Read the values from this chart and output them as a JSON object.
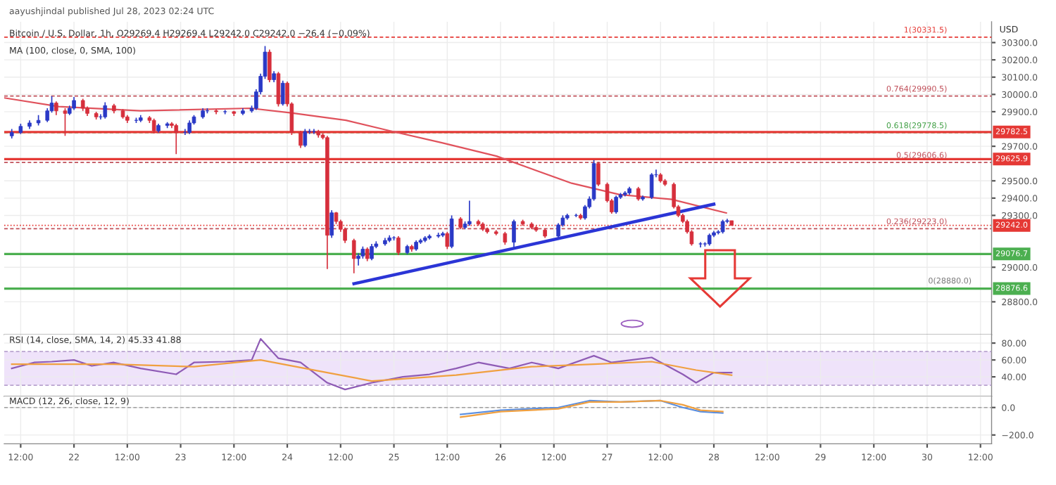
{
  "chart_data": [
    {
      "type": "candlestick",
      "title": "Bitcoin / U.S. Dollar, 1h, O29269.4 H29269.4 L29242.0 C29242.0 −26.4 (−0.09%)",
      "subtitle": "MA (100, close, 0, SMA, 100)",
      "ylabel": "USD",
      "annotations": [
        "aayushjindal published Jul 28, 2023 02:24 UTC",
        {
          "text": "0(28880.0)",
          "x": "2023-07-30T10:00",
          "y": 28880.0
        }
      ],
      "x": [
        "2023-07-21T10:00",
        "2023-07-21T12:00",
        "2023-07-21T14:00",
        "2023-07-21T16:00",
        "2023-07-21T18:00",
        "2023-07-21T19:00",
        "2023-07-21T20:00",
        "2023-07-21T22:00",
        "2023-07-21T23:00",
        "2023-07-22T00:00",
        "2023-07-22T02:00",
        "2023-07-22T03:00",
        "2023-07-22T05:00",
        "2023-07-22T06:00",
        "2023-07-22T07:00",
        "2023-07-22T09:00",
        "2023-07-22T11:00",
        "2023-07-22T12:00",
        "2023-07-22T14:00",
        "2023-07-22T15:00",
        "2023-07-22T17:00",
        "2023-07-22T18:00",
        "2023-07-22T19:00",
        "2023-07-22T21:00",
        "2023-07-22T22:00",
        "2023-07-22T23:00",
        "2023-07-23T01:00",
        "2023-07-23T02:00",
        "2023-07-23T03:00",
        "2023-07-23T05:00",
        "2023-07-23T06:00",
        "2023-07-23T08:00",
        "2023-07-23T10:00",
        "2023-07-23T12:00",
        "2023-07-23T14:00",
        "2023-07-23T16:00",
        "2023-07-23T17:00",
        "2023-07-23T18:00",
        "2023-07-23T19:00",
        "2023-07-23T20:00",
        "2023-07-23T21:00",
        "2023-07-23T22:00",
        "2023-07-23T23:00",
        "2023-07-24T00:00",
        "2023-07-24T01:00",
        "2023-07-24T03:00",
        "2023-07-24T04:00",
        "2023-07-24T05:00",
        "2023-07-24T06:00",
        "2023-07-24T07:00",
        "2023-07-24T08:00",
        "2023-07-24T09:00",
        "2023-07-24T10:00",
        "2023-07-24T11:00",
        "2023-07-24T12:00",
        "2023-07-24T13:00",
        "2023-07-24T15:00",
        "2023-07-24T16:00",
        "2023-07-24T17:00",
        "2023-07-24T18:00",
        "2023-07-24T19:00",
        "2023-07-24T20:00",
        "2023-07-24T22:00",
        "2023-07-24T23:00",
        "2023-07-25T00:00",
        "2023-07-25T01:00",
        "2023-07-25T03:00",
        "2023-07-25T04:00",
        "2023-07-25T05:00",
        "2023-07-25T06:00",
        "2023-07-25T07:00",
        "2023-07-25T08:00",
        "2023-07-25T10:00",
        "2023-07-25T11:00",
        "2023-07-25T12:00",
        "2023-07-25T13:00",
        "2023-07-25T15:00",
        "2023-07-25T16:00",
        "2023-07-25T17:00",
        "2023-07-25T19:00",
        "2023-07-25T20:00",
        "2023-07-25T21:00",
        "2023-07-25T23:00",
        "2023-07-26T01:00",
        "2023-07-26T03:00",
        "2023-07-26T05:00",
        "2023-07-26T07:00",
        "2023-07-26T08:00",
        "2023-07-26T10:00",
        "2023-07-26T13:00",
        "2023-07-26T14:00",
        "2023-07-26T15:00",
        "2023-07-26T17:00",
        "2023-07-26T18:00",
        "2023-07-26T19:00",
        "2023-07-26T20:00",
        "2023-07-26T21:00",
        "2023-07-26T22:00",
        "2023-07-27T00:00",
        "2023-07-27T01:00",
        "2023-07-27T02:00",
        "2023-07-27T03:00",
        "2023-07-27T04:00",
        "2023-07-27T05:00",
        "2023-07-27T07:00",
        "2023-07-27T08:00",
        "2023-07-27T10:00",
        "2023-07-27T11:00",
        "2023-07-27T12:00",
        "2023-07-27T13:00",
        "2023-07-27T15:00",
        "2023-07-27T16:00",
        "2023-07-27T17:00",
        "2023-07-27T18:00",
        "2023-07-27T19:00",
        "2023-07-27T21:00",
        "2023-07-27T22:00",
        "2023-07-27T23:00",
        "2023-07-28T00:00",
        "2023-07-28T01:00",
        "2023-07-28T02:00",
        "2023-07-28T03:00",
        "2023-07-28T04:00"
      ],
      "ohlc": [
        [
          29760,
          29800,
          29745,
          29780
        ],
        [
          29780,
          29830,
          29770,
          29815
        ],
        [
          29815,
          29850,
          29800,
          29835
        ],
        [
          29835,
          29880,
          29820,
          29850
        ],
        [
          29850,
          29920,
          29840,
          29905
        ],
        [
          29905,
          29990,
          29895,
          29950
        ],
        [
          29950,
          29960,
          29880,
          29905
        ],
        [
          29905,
          29920,
          29760,
          29890
        ],
        [
          29890,
          29935,
          29880,
          29920
        ],
        [
          29920,
          29985,
          29910,
          29965
        ],
        [
          29965,
          29975,
          29905,
          29920
        ],
        [
          29920,
          29930,
          29875,
          29890
        ],
        [
          29890,
          29900,
          29855,
          29870
        ],
        [
          29870,
          29885,
          29855,
          29870
        ],
        [
          29870,
          29955,
          29860,
          29935
        ],
        [
          29935,
          29945,
          29890,
          29905
        ],
        [
          29905,
          29915,
          29860,
          29870
        ],
        [
          29870,
          29880,
          29835,
          29850
        ],
        [
          29850,
          29865,
          29835,
          29850
        ],
        [
          29850,
          29880,
          29840,
          29865
        ],
        [
          29865,
          29875,
          29835,
          29850
        ],
        [
          29850,
          29860,
          29775,
          29790
        ],
        [
          29790,
          29830,
          29780,
          29820
        ],
        [
          29820,
          29840,
          29805,
          29830
        ],
        [
          29830,
          29840,
          29805,
          29820
        ],
        [
          29820,
          29830,
          29655,
          29780
        ],
        [
          29780,
          29800,
          29765,
          29780
        ],
        [
          29780,
          29850,
          29770,
          29835
        ],
        [
          29835,
          29880,
          29825,
          29870
        ],
        [
          29870,
          29920,
          29860,
          29905
        ],
        [
          29905,
          29920,
          29890,
          29905
        ],
        [
          29905,
          29915,
          29885,
          29900
        ],
        [
          29900,
          29910,
          29885,
          29900
        ],
        [
          29900,
          29905,
          29875,
          29890
        ],
        [
          29890,
          29920,
          29880,
          29905
        ],
        [
          29905,
          29935,
          29895,
          29920
        ],
        [
          29920,
          30030,
          29910,
          30015
        ],
        [
          30015,
          30120,
          30000,
          30105
        ],
        [
          30105,
          30280,
          30090,
          30245
        ],
        [
          30245,
          30260,
          30070,
          30085
        ],
        [
          30085,
          30135,
          30070,
          30120
        ],
        [
          30120,
          30130,
          29930,
          29945
        ],
        [
          29945,
          30080,
          29935,
          30065
        ],
        [
          30065,
          30075,
          29930,
          29945
        ],
        [
          29945,
          29955,
          29765,
          29780
        ],
        [
          29780,
          29790,
          29690,
          29705
        ],
        [
          29705,
          29800,
          29695,
          29785
        ],
        [
          29785,
          29800,
          29770,
          29785
        ],
        [
          29785,
          29800,
          29770,
          29785
        ],
        [
          29785,
          29795,
          29750,
          29765
        ],
        [
          29765,
          29775,
          29740,
          29750
        ],
        [
          29750,
          29760,
          28990,
          29185
        ],
        [
          29185,
          29330,
          29170,
          29315
        ],
        [
          29315,
          29320,
          29250,
          29265
        ],
        [
          29265,
          29275,
          29205,
          29220
        ],
        [
          29220,
          29230,
          29140,
          29155
        ],
        [
          29155,
          29165,
          28965,
          29050
        ],
        [
          29050,
          29080,
          29010,
          29065
        ],
        [
          29065,
          29120,
          29050,
          29105
        ],
        [
          29105,
          29115,
          29035,
          29050
        ],
        [
          29050,
          29135,
          29040,
          29120
        ],
        [
          29120,
          29150,
          29110,
          29135
        ],
        [
          29135,
          29170,
          29125,
          29155
        ],
        [
          29155,
          29185,
          29145,
          29170
        ],
        [
          29170,
          29180,
          29155,
          29170
        ],
        [
          29170,
          29180,
          29070,
          29085
        ],
        [
          29085,
          29130,
          29075,
          29120
        ],
        [
          29120,
          29130,
          29090,
          29105
        ],
        [
          29105,
          29155,
          29095,
          29145
        ],
        [
          29145,
          29165,
          29135,
          29155
        ],
        [
          29155,
          29180,
          29145,
          29170
        ],
        [
          29170,
          29190,
          29160,
          29180
        ],
        [
          29180,
          29200,
          29170,
          29185
        ],
        [
          29185,
          29205,
          29175,
          29195
        ],
        [
          29195,
          29205,
          29105,
          29120
        ],
        [
          29120,
          29300,
          29110,
          29280
        ],
        [
          29280,
          29290,
          29220,
          29230
        ],
        [
          29230,
          29265,
          29220,
          29250
        ],
        [
          29250,
          29385,
          29240,
          29265
        ],
        [
          29265,
          29275,
          29240,
          29250
        ],
        [
          29250,
          29260,
          29210,
          29220
        ],
        [
          29220,
          29230,
          29195,
          29205
        ],
        [
          29205,
          29215,
          29185,
          29195
        ],
        [
          29195,
          29205,
          29130,
          29145
        ],
        [
          29145,
          29275,
          29110,
          29265
        ],
        [
          29265,
          29275,
          29240,
          29250
        ],
        [
          29250,
          29260,
          29220,
          29230
        ],
        [
          29230,
          29240,
          29205,
          29215
        ],
        [
          29215,
          29225,
          29170,
          29180
        ],
        [
          29180,
          29255,
          29170,
          29245
        ],
        [
          29245,
          29300,
          29235,
          29285
        ],
        [
          29285,
          29310,
          29275,
          29300
        ],
        [
          29300,
          29310,
          29290,
          29300
        ],
        [
          29300,
          29310,
          29275,
          29285
        ],
        [
          29285,
          29360,
          29275,
          29350
        ],
        [
          29350,
          29410,
          29340,
          29395
        ],
        [
          29395,
          29620,
          29385,
          29600
        ],
        [
          29600,
          29610,
          29470,
          29480
        ],
        [
          29480,
          29490,
          29375,
          29385
        ],
        [
          29385,
          29395,
          29310,
          29320
        ],
        [
          29320,
          29415,
          29310,
          29405
        ],
        [
          29405,
          29430,
          29395,
          29420
        ],
        [
          29420,
          29440,
          29410,
          29430
        ],
        [
          29430,
          29465,
          29420,
          29455
        ],
        [
          29455,
          29465,
          29385,
          29395
        ],
        [
          29395,
          29415,
          29385,
          29405
        ],
        [
          29405,
          29545,
          29395,
          29535
        ],
        [
          29535,
          29565,
          29520,
          29535
        ],
        [
          29535,
          29545,
          29490,
          29500
        ],
        [
          29500,
          29510,
          29470,
          29480
        ],
        [
          29480,
          29490,
          29340,
          29350
        ],
        [
          29350,
          29360,
          29290,
          29300
        ],
        [
          29300,
          29310,
          29255,
          29265
        ],
        [
          29265,
          29275,
          29195,
          29205
        ],
        [
          29205,
          29215,
          29125,
          29135
        ],
        [
          29135,
          29145,
          29115,
          29135
        ],
        [
          29135,
          29145,
          29120,
          29135
        ],
        [
          29135,
          29195,
          29125,
          29185
        ],
        [
          29185,
          29210,
          29175,
          29200
        ],
        [
          29200,
          29215,
          29190,
          29205
        ],
        [
          29205,
          29275,
          29195,
          29265
        ],
        [
          29265,
          29280,
          29255,
          29269.4
        ],
        [
          29269.4,
          29269.4,
          29242.0,
          29242.0
        ]
      ],
      "series": [
        {
          "type": "line",
          "color": "#e0525c",
          "x": [
            "2023-07-21T08:18",
            "2023-07-21T20:36",
            "2023-07-22T15:00",
            "2023-07-23T15:42",
            "2023-07-24T00:54",
            "2023-07-24T13:12",
            "2023-07-24T22:30",
            "2023-07-25T10:48",
            "2023-07-25T23:06",
            "2023-07-26T08:18",
            "2023-07-26T16:00",
            "2023-07-27T02:48",
            "2023-07-27T14:30",
            "2023-07-28T02:48"
          ],
          "values": [
            29980,
            29930,
            29905,
            29920,
            29893,
            29850,
            29793,
            29720,
            29643,
            29557,
            29486,
            29420,
            29393,
            29314
          ]
        },
        {
          "type": "line",
          "color": "#2b35d6",
          "x": [
            "2023-07-24T15:00",
            "2023-07-28T00:00"
          ],
          "values": [
            28905,
            29365
          ]
        }
      ],
      "ref_lines": [
        {
          "axis": "y",
          "value": 30331.5,
          "label": "1(30331.5)",
          "color": "#e53935",
          "line_style": "dashed"
        },
        {
          "axis": "y",
          "value": 29990.5,
          "label": "0.764(29990.5)",
          "color": "#c0505a",
          "line_style": "dashed"
        },
        {
          "axis": "y",
          "value": 29778.5,
          "label": "0.618(29778.5)",
          "color": "#43a047",
          "line_style": "dashed"
        },
        {
          "axis": "y",
          "value": 29782.5,
          "label": "29782.5",
          "color": "#e53935",
          "line_style": "solid"
        },
        {
          "axis": "y",
          "value": 29625.9,
          "label": "29625.9",
          "color": "#e53935",
          "line_style": "solid"
        },
        {
          "axis": "y",
          "value": 29606.6,
          "label": "0.5(29606.6)",
          "color": "#c0505a",
          "line_style": "dashed"
        },
        {
          "axis": "y",
          "value": 29242.0,
          "label": "29242.0",
          "color": "#e53935",
          "line_style": "dotted"
        },
        {
          "axis": "y",
          "value": 29223.0,
          "label": "0.236(29223.0)",
          "color": "#c0505a",
          "line_style": "dashed"
        },
        {
          "axis": "y",
          "value": 29076.7,
          "label": "29076.7",
          "color": "#4caf50",
          "line_style": "solid"
        },
        {
          "axis": "y",
          "value": 28876.6,
          "label": "28876.6",
          "color": "#4caf50",
          "line_style": "solid"
        }
      ],
      "xlim": [
        "2023-07-21T08:18",
        "2023-07-30T14:30"
      ],
      "xticks": [
        {
          "value": "2023-07-21T12:00",
          "label": null
        },
        {
          "value": "2023-07-22T00:00",
          "label": null
        },
        {
          "value": "2023-07-22T12:00",
          "label": null
        },
        {
          "value": "2023-07-23T00:00",
          "label": null
        },
        {
          "value": "2023-07-23T12:00",
          "label": null
        },
        {
          "value": "2023-07-24T00:00",
          "label": null
        },
        {
          "value": "2023-07-24T12:00",
          "label": null
        },
        {
          "value": "2023-07-25T00:00",
          "label": null
        },
        {
          "value": "2023-07-25T12:00",
          "label": null
        },
        {
          "value": "2023-07-26T00:00",
          "label": null
        },
        {
          "value": "2023-07-26T12:00",
          "label": null
        },
        {
          "value": "2023-07-27T00:00",
          "label": null
        },
        {
          "value": "2023-07-27T12:00",
          "label": null
        },
        {
          "value": "2023-07-28T00:00",
          "label": null
        },
        {
          "value": "2023-07-28T12:00",
          "label": null
        },
        {
          "value": "2023-07-29T00:00",
          "label": null
        },
        {
          "value": "2023-07-29T12:00",
          "label": null
        },
        {
          "value": "2023-07-30T00:00",
          "label": null
        },
        {
          "value": "2023-07-30T12:00",
          "label": null
        }
      ],
      "ylim": [
        28610,
        30420
      ],
      "yticks": [
        {
          "value": 28800,
          "label": "28800.0"
        },
        {
          "value": 29000,
          "label": "29000.0"
        },
        {
          "value": 29300,
          "label": "29300.0"
        },
        {
          "value": 29400,
          "label": "29400.0"
        },
        {
          "value": 29500,
          "label": "29500.0"
        },
        {
          "value": 29700,
          "label": "29700.0"
        },
        {
          "value": 29900,
          "label": "29900.0"
        },
        {
          "value": 30000,
          "label": "30000.0"
        },
        {
          "value": 30100,
          "label": "30100.0"
        },
        {
          "value": 30200,
          "label": "30200.0"
        },
        {
          "value": 30300,
          "label": "30300.0"
        }
      ],
      "grid": true,
      "tick_labels": "y"
    },
    {
      "type": "line",
      "title": "RSI (14, close, SMA, 14, 2) 45.33 41.88",
      "series": [
        {
          "color": "#8e5bb5",
          "x": [
            "2023-07-21T10:00",
            "2023-07-21T15:00",
            "2023-07-21T19:00",
            "2023-07-22T00:00",
            "2023-07-22T04:00",
            "2023-07-22T09:00",
            "2023-07-22T15:00",
            "2023-07-22T23:00",
            "2023-07-23T03:00",
            "2023-07-23T10:00",
            "2023-07-23T16:00",
            "2023-07-23T18:00",
            "2023-07-23T22:00",
            "2023-07-24T03:00",
            "2023-07-24T09:00",
            "2023-07-24T13:00",
            "2023-07-24T19:00",
            "2023-07-25T02:00",
            "2023-07-25T08:00",
            "2023-07-25T14:00",
            "2023-07-25T19:00",
            "2023-07-26T02:00",
            "2023-07-26T07:00",
            "2023-07-26T13:00",
            "2023-07-26T21:00",
            "2023-07-27T01:00",
            "2023-07-27T10:00",
            "2023-07-27T17:00",
            "2023-07-27T20:00",
            "2023-07-28T00:00",
            "2023-07-28T04:00"
          ],
          "values": [
            50,
            57,
            58,
            60,
            53,
            57,
            50,
            43,
            57,
            58,
            60,
            85,
            62,
            57,
            33,
            25,
            33,
            40,
            43,
            50,
            57,
            50,
            57,
            50,
            65,
            57,
            63,
            43,
            33,
            45,
            45
          ]
        },
        {
          "color": "#f0a040",
          "x": [
            "2023-07-21T10:00",
            "2023-07-22T09:00",
            "2023-07-23T03:00",
            "2023-07-23T18:00",
            "2023-07-24T09:00",
            "2023-07-24T19:00",
            "2023-07-25T14:00",
            "2023-07-26T07:00",
            "2023-07-26T21:00",
            "2023-07-27T10:00",
            "2023-07-27T20:00",
            "2023-07-28T04:00"
          ],
          "values": [
            55,
            55,
            52,
            60,
            45,
            35,
            42,
            52,
            55,
            58,
            48,
            42
          ]
        }
      ],
      "bands": [
        {
          "axis": "y",
          "from": 30,
          "to": 70,
          "color": "#efe3fa"
        }
      ],
      "ref_lines": [
        {
          "axis": "y",
          "value": 70,
          "color": "#b9a3cf",
          "line_style": "dashed"
        },
        {
          "axis": "y",
          "value": 30,
          "color": "#b9a3cf",
          "line_style": "dashed"
        }
      ],
      "xlim": [
        "2023-07-21T08:18",
        "2023-07-30T14:30"
      ],
      "xticks": [
        {
          "value": "2023-07-21T12:00",
          "label": null
        },
        {
          "value": "2023-07-22T00:00",
          "label": null
        },
        {
          "value": "2023-07-22T12:00",
          "label": null
        },
        {
          "value": "2023-07-23T00:00",
          "label": null
        },
        {
          "value": "2023-07-23T12:00",
          "label": null
        },
        {
          "value": "2023-07-24T00:00",
          "label": null
        },
        {
          "value": "2023-07-24T12:00",
          "label": null
        },
        {
          "value": "2023-07-25T00:00",
          "label": null
        },
        {
          "value": "2023-07-25T12:00",
          "label": null
        },
        {
          "value": "2023-07-26T00:00",
          "label": null
        },
        {
          "value": "2023-07-26T12:00",
          "label": null
        },
        {
          "value": "2023-07-27T00:00",
          "label": null
        },
        {
          "value": "2023-07-27T12:00",
          "label": null
        },
        {
          "value": "2023-07-28T00:00",
          "label": null
        },
        {
          "value": "2023-07-28T12:00",
          "label": null
        },
        {
          "value": "2023-07-29T00:00",
          "label": null
        },
        {
          "value": "2023-07-29T12:00",
          "label": null
        },
        {
          "value": "2023-07-30T00:00",
          "label": null
        },
        {
          "value": "2023-07-30T12:00",
          "label": null
        }
      ],
      "ylim": [
        17,
        90
      ],
      "yticks": [
        {
          "value": 80,
          "label": "80.00"
        },
        {
          "value": 60,
          "label": "60.00"
        },
        {
          "value": 40,
          "label": "40.00"
        }
      ],
      "grid": true,
      "tick_labels": "y"
    },
    {
      "type": "line",
      "title": "MACD (12, 26, close, 12, 9)",
      "series": [
        {
          "color": "#5b8fe0",
          "x": [
            "2023-07-25T15:00",
            "2023-07-26T00:00",
            "2023-07-26T13:00",
            "2023-07-26T20:00",
            "2023-07-27T03:00",
            "2023-07-27T12:00",
            "2023-07-27T17:00",
            "2023-07-27T21:00",
            "2023-07-28T02:00"
          ],
          "values": [
            -50,
            -20,
            0,
            50,
            40,
            50,
            0,
            -30,
            -40
          ]
        },
        {
          "color": "#f0a040",
          "x": [
            "2023-07-25T15:00",
            "2023-07-26T00:00",
            "2023-07-26T13:00",
            "2023-07-26T20:00",
            "2023-07-27T03:00",
            "2023-07-27T12:00",
            "2023-07-27T17:00",
            "2023-07-27T21:00",
            "2023-07-28T02:00"
          ],
          "values": [
            -70,
            -30,
            -10,
            40,
            40,
            50,
            20,
            -20,
            -30
          ]
        }
      ],
      "ref_lines": [
        {
          "axis": "y",
          "value": 0,
          "color": "#9e9e9e",
          "line_style": "dashed"
        }
      ],
      "xlim": [
        "2023-07-21T08:18",
        "2023-07-30T14:30"
      ],
      "xticks": [
        {
          "value": "2023-07-21T12:00",
          "label": "12:00"
        },
        {
          "value": "2023-07-22T00:00",
          "label": "22"
        },
        {
          "value": "2023-07-22T12:00",
          "label": "12:00"
        },
        {
          "value": "2023-07-23T00:00",
          "label": "23"
        },
        {
          "value": "2023-07-23T12:00",
          "label": "12:00"
        },
        {
          "value": "2023-07-24T00:00",
          "label": "24"
        },
        {
          "value": "2023-07-24T12:00",
          "label": "12:00"
        },
        {
          "value": "2023-07-25T00:00",
          "label": "25"
        },
        {
          "value": "2023-07-25T12:00",
          "label": "12:00"
        },
        {
          "value": "2023-07-26T00:00",
          "label": "26"
        },
        {
          "value": "2023-07-26T12:00",
          "label": "12:00"
        },
        {
          "value": "2023-07-27T00:00",
          "label": "27"
        },
        {
          "value": "2023-07-27T12:00",
          "label": "12:00"
        },
        {
          "value": "2023-07-28T00:00",
          "label": "28"
        },
        {
          "value": "2023-07-28T12:00",
          "label": "12:00"
        },
        {
          "value": "2023-07-29T00:00",
          "label": "29"
        },
        {
          "value": "2023-07-29T12:00",
          "label": "12:00"
        },
        {
          "value": "2023-07-30T00:00",
          "label": "30"
        },
        {
          "value": "2023-07-30T12:00",
          "label": "12:00"
        }
      ],
      "ylim": [
        -264,
        82
      ],
      "yticks": [
        {
          "value": 0,
          "label": "0.0"
        },
        {
          "value": -200,
          "label": "−200.0"
        }
      ],
      "grid": true
    }
  ]
}
